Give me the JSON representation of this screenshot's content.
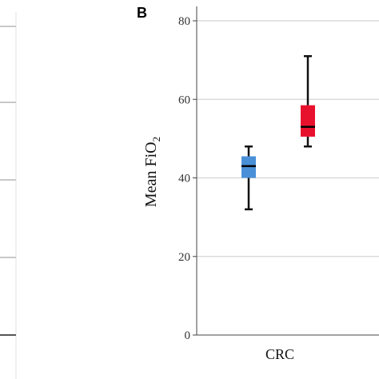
{
  "panel_label": "B",
  "chart_data": {
    "type": "box",
    "ylabel_main": "Mean FiO",
    "ylabel_sub": "2",
    "ylim": [
      0,
      80
    ],
    "yticks": [
      "0",
      "20",
      "40",
      "60",
      "80"
    ],
    "grid": true,
    "categories": [
      "CRC"
    ],
    "boxes": [
      {
        "color": "#4a90d9",
        "whisker_low": 32,
        "q1": 40,
        "median": 43,
        "q3": 45.5,
        "whisker_high": 48
      },
      {
        "color": "#e8112d",
        "whisker_low": 48,
        "q1": 50.5,
        "median": 53,
        "q3": 58.5,
        "whisker_high": 71
      }
    ]
  }
}
